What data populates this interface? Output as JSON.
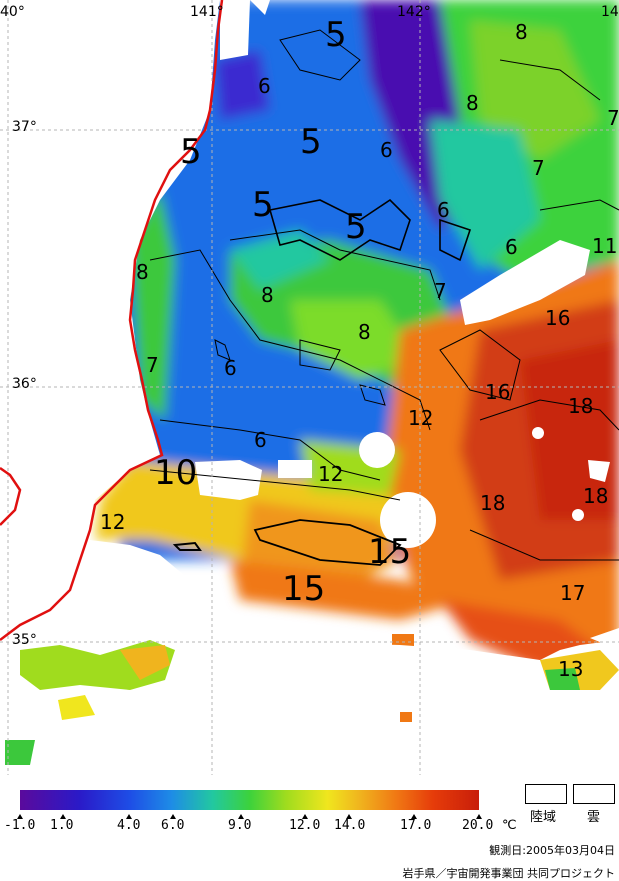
{
  "map": {
    "lat_labels": [
      {
        "text": "37°",
        "key": "lat37"
      },
      {
        "text": "36°",
        "key": "lat36"
      },
      {
        "text": "35°",
        "key": "lat35"
      }
    ],
    "lon_labels": [
      {
        "text": "40°",
        "key": "lon140"
      },
      {
        "text": "141°",
        "key": "lon141"
      },
      {
        "text": "142°",
        "key": "lon142"
      },
      {
        "text": "14",
        "key": "lon143"
      }
    ],
    "contour_labels": [
      "5",
      "5",
      "5",
      "5",
      "5",
      "6",
      "6",
      "6",
      "6",
      "6",
      "6",
      "7",
      "7",
      "7",
      "7",
      "8",
      "8",
      "8",
      "8",
      "8",
      "10",
      "11",
      "12",
      "12",
      "12",
      "13",
      "15",
      "15",
      "16",
      "16",
      "17",
      "18",
      "18",
      "18"
    ],
    "colors": {
      "land": "#ffffff",
      "coastline": "#e01010",
      "grid": "#b4b4b4"
    }
  },
  "colorbar": {
    "ticks": [
      "-1.0",
      "1.0",
      "4.0",
      "6.0",
      "9.0",
      "12.0",
      "14.0",
      "17.0",
      "20.0"
    ],
    "unit": "℃"
  },
  "legend": {
    "land_label": "陸域",
    "cloud_label": "雲"
  },
  "footer": {
    "observation_date": "観測日:2005年03月04日",
    "credit": "岩手県／宇宙開発事業団 共同プロジェクト"
  }
}
